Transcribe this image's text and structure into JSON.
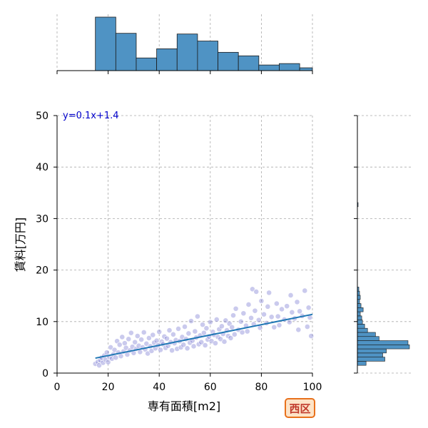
{
  "chart_data": {
    "type": "scatter",
    "xlabel": "専有面積[m2]",
    "ylabel": "賃料[万円]",
    "xlim": [
      0,
      100
    ],
    "ylim": [
      0,
      50
    ],
    "xticks": [
      "0",
      "20",
      "40",
      "60",
      "80",
      "100"
    ],
    "yticks": [
      "0",
      "10",
      "20",
      "30",
      "40",
      "50"
    ],
    "grid": true,
    "annotation": "y=0.1x+1.4",
    "badge": "西区",
    "regression": {
      "slope": 0.1,
      "intercept": 1.4,
      "x_range": [
        15,
        100
      ]
    },
    "x_hist": {
      "bin_edges": [
        15,
        23,
        31,
        39,
        47,
        55,
        63,
        71,
        79,
        87,
        95,
        103
      ],
      "counts": [
        76,
        53,
        18,
        31,
        52,
        42,
        26,
        21,
        8,
        10,
        4
      ]
    },
    "y_hist": {
      "bins": [
        {
          "lo": 1.5,
          "hi": 2.3,
          "count": 12
        },
        {
          "lo": 2.3,
          "hi": 3.1,
          "count": 38
        },
        {
          "lo": 3.1,
          "hi": 3.9,
          "count": 35
        },
        {
          "lo": 3.9,
          "hi": 4.7,
          "count": 40
        },
        {
          "lo": 4.7,
          "hi": 5.5,
          "count": 72
        },
        {
          "lo": 5.5,
          "hi": 6.3,
          "count": 70
        },
        {
          "lo": 6.3,
          "hi": 7.1,
          "count": 30
        },
        {
          "lo": 7.1,
          "hi": 7.9,
          "count": 25
        },
        {
          "lo": 7.9,
          "hi": 8.7,
          "count": 14
        },
        {
          "lo": 8.7,
          "hi": 9.5,
          "count": 10
        },
        {
          "lo": 9.5,
          "hi": 10.3,
          "count": 7
        },
        {
          "lo": 10.3,
          "hi": 11.1,
          "count": 6
        },
        {
          "lo": 11.1,
          "hi": 11.9,
          "count": 4
        },
        {
          "lo": 11.9,
          "hi": 12.7,
          "count": 8
        },
        {
          "lo": 12.7,
          "hi": 13.5,
          "count": 5
        },
        {
          "lo": 13.5,
          "hi": 14.3,
          "count": 3
        },
        {
          "lo": 14.3,
          "hi": 15.1,
          "count": 4
        },
        {
          "lo": 15.1,
          "hi": 15.9,
          "count": 3
        },
        {
          "lo": 15.9,
          "hi": 16.7,
          "count": 2
        },
        {
          "lo": 32.3,
          "hi": 33.1,
          "count": 1
        }
      ]
    },
    "series": [
      {
        "points": [
          [
            15,
            1.8
          ],
          [
            16,
            2.2
          ],
          [
            16.5,
            1.5
          ],
          [
            17,
            2.5
          ],
          [
            17.5,
            3.0
          ],
          [
            18,
            2.0
          ],
          [
            18.5,
            3.4
          ],
          [
            19,
            2.6
          ],
          [
            19.5,
            4.0
          ],
          [
            20,
            2.1
          ],
          [
            20.5,
            3.1
          ],
          [
            21,
            5.0
          ],
          [
            21.5,
            2.8
          ],
          [
            22,
            3.6
          ],
          [
            22.5,
            4.5
          ],
          [
            23,
            3.0
          ],
          [
            23.5,
            6.2
          ],
          [
            24,
            4.0
          ],
          [
            24.5,
            5.5
          ],
          [
            25,
            3.3
          ],
          [
            25.5,
            7.0
          ],
          [
            26,
            4.2
          ],
          [
            26.5,
            5.8
          ],
          [
            27,
            4.9
          ],
          [
            27.5,
            3.6
          ],
          [
            28,
            6.6
          ],
          [
            28.5,
            4.4
          ],
          [
            29,
            7.8
          ],
          [
            29.5,
            5.1
          ],
          [
            30,
            3.9
          ],
          [
            30.5,
            6.0
          ],
          [
            31,
            4.7
          ],
          [
            31.5,
            7.2
          ],
          [
            32,
            5.3
          ],
          [
            32.5,
            4.1
          ],
          [
            33,
            6.5
          ],
          [
            33.5,
            5.0
          ],
          [
            34,
            7.9
          ],
          [
            34.5,
            4.6
          ],
          [
            35,
            5.7
          ],
          [
            35.5,
            3.8
          ],
          [
            36,
            6.8
          ],
          [
            36.5,
            5.2
          ],
          [
            37,
            4.3
          ],
          [
            37.5,
            7.4
          ],
          [
            38,
            5.9
          ],
          [
            38.5,
            4.8
          ],
          [
            39,
            6.3
          ],
          [
            39.5,
            5.4
          ],
          [
            40,
            8.0
          ],
          [
            40.5,
            4.5
          ],
          [
            41,
            6.1
          ],
          [
            41.5,
            5.6
          ],
          [
            42,
            7.1
          ],
          [
            42.5,
            4.9
          ],
          [
            43,
            6.7
          ],
          [
            43.5,
            5.3
          ],
          [
            44,
            8.3
          ],
          [
            44.5,
            6.0
          ],
          [
            45,
            4.4
          ],
          [
            45.5,
            7.5
          ],
          [
            46,
            5.8
          ],
          [
            46.5,
            6.4
          ],
          [
            47,
            4.7
          ],
          [
            47.5,
            8.6
          ],
          [
            48,
            6.2
          ],
          [
            48.5,
            5.0
          ],
          [
            49,
            7.0
          ],
          [
            49.5,
            5.5
          ],
          [
            50,
            9.0
          ],
          [
            50.5,
            6.6
          ],
          [
            51,
            4.8
          ],
          [
            51.5,
            7.7
          ],
          [
            52,
            5.9
          ],
          [
            52.5,
            10.1
          ],
          [
            53,
            6.3
          ],
          [
            53.5,
            5.2
          ],
          [
            54,
            8.1
          ],
          [
            54.5,
            6.9
          ],
          [
            55,
            11.0
          ],
          [
            55.5,
            5.6
          ],
          [
            56,
            7.3
          ],
          [
            56.5,
            6.0
          ],
          [
            57,
            9.4
          ],
          [
            57.5,
            7.8
          ],
          [
            58,
            5.4
          ],
          [
            58.5,
            8.7
          ],
          [
            59,
            6.5
          ],
          [
            59.5,
            7.1
          ],
          [
            60,
            9.9
          ],
          [
            60.5,
            6.2
          ],
          [
            61,
            8.0
          ],
          [
            61.5,
            7.4
          ],
          [
            62,
            5.8
          ],
          [
            62.5,
            10.4
          ],
          [
            63,
            7.0
          ],
          [
            63.5,
            8.5
          ],
          [
            64,
            6.6
          ],
          [
            64.5,
            9.1
          ],
          [
            65,
            7.6
          ],
          [
            65.5,
            6.1
          ],
          [
            66,
            10.2
          ],
          [
            66.5,
            8.3
          ],
          [
            67,
            7.2
          ],
          [
            67.5,
            9.6
          ],
          [
            68,
            6.8
          ],
          [
            68.5,
            8.9
          ],
          [
            69,
            11.2
          ],
          [
            69.5,
            7.5
          ],
          [
            70,
            12.5
          ],
          [
            71,
            8.4
          ],
          [
            72,
            10.0
          ],
          [
            72.5,
            7.9
          ],
          [
            73,
            11.6
          ],
          [
            74,
            9.2
          ],
          [
            74.5,
            8.1
          ],
          [
            75,
            13.3
          ],
          [
            76,
            10.7
          ],
          [
            76.5,
            16.3
          ],
          [
            77,
            9.5
          ],
          [
            77.5,
            12.1
          ],
          [
            78,
            15.8
          ],
          [
            79,
            10.3
          ],
          [
            79.5,
            8.8
          ],
          [
            80,
            14.0
          ],
          [
            81,
            11.4
          ],
          [
            82,
            9.7
          ],
          [
            82.5,
            12.9
          ],
          [
            83,
            15.6
          ],
          [
            84,
            10.9
          ],
          [
            85,
            8.9
          ],
          [
            86,
            13.5
          ],
          [
            86.5,
            11.0
          ],
          [
            87,
            9.3
          ],
          [
            88,
            12.4
          ],
          [
            89,
            10.4
          ],
          [
            90,
            13.0
          ],
          [
            91,
            9.9
          ],
          [
            91.5,
            15.1
          ],
          [
            92,
            11.8
          ],
          [
            93,
            10.6
          ],
          [
            94,
            13.8
          ],
          [
            94.5,
            8.4
          ],
          [
            95,
            12.0
          ],
          [
            96,
            11.1
          ],
          [
            97,
            16.0
          ],
          [
            98,
            9.0
          ],
          [
            98.5,
            12.7
          ],
          [
            99,
            10.8
          ],
          [
            99.5,
            7.2
          ]
        ]
      }
    ]
  }
}
